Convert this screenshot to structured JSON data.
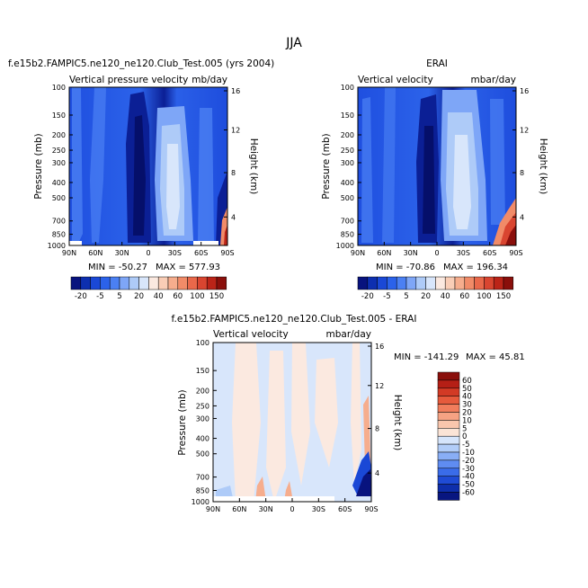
{
  "figure_title": "JJA",
  "chart_data": [
    {
      "type": "heatmap",
      "title": "f.e15b2.FAMPIC5.ne120_ne120.Club_Test.005 (yrs 2004)",
      "subtitle_left": "Vertical pressure velocity",
      "subtitle_right": "mb/day",
      "xlabel": "",
      "ylabel": "Pressure (mb)",
      "y2label": "Height (km)",
      "x_ticks": [
        "90N",
        "60N",
        "30N",
        "0",
        "30S",
        "60S",
        "90S"
      ],
      "y_ticks": [
        "100",
        "150",
        "200",
        "250",
        "300",
        "400",
        "500",
        "700",
        "850",
        "1000"
      ],
      "y2_ticks": [
        "16",
        "12",
        "8",
        "4"
      ],
      "min_text": "MIN = -50.27",
      "max_text": "MAX = 577.93",
      "colorbar_labels": [
        "-20",
        "-5",
        "5",
        "20",
        "40",
        "60",
        "100",
        "150"
      ]
    },
    {
      "type": "heatmap",
      "title": "ERAI",
      "subtitle_left": "Vertical velocity",
      "subtitle_right": "mbar/day",
      "xlabel": "",
      "ylabel": "Pressure (mb)",
      "y2label": "Height (km)",
      "x_ticks": [
        "90N",
        "60N",
        "30N",
        "0",
        "30S",
        "60S",
        "90S"
      ],
      "y_ticks": [
        "100",
        "150",
        "200",
        "250",
        "300",
        "400",
        "500",
        "700",
        "850",
        "1000"
      ],
      "y2_ticks": [
        "16",
        "12",
        "8",
        "4"
      ],
      "min_text": "MIN = -70.86",
      "max_text": "MAX = 196.34",
      "colorbar_labels": [
        "-20",
        "-5",
        "5",
        "20",
        "40",
        "60",
        "100",
        "150"
      ]
    },
    {
      "type": "heatmap",
      "title": "f.e15b2.FAMPIC5.ne120_ne120.Club_Test.005 - ERAI",
      "subtitle_left": "Vertical velocity",
      "subtitle_right": "mbar/day",
      "xlabel": "",
      "ylabel": "Pressure (mb)",
      "y2label": "Height (km)",
      "x_ticks": [
        "90N",
        "60N",
        "30N",
        "0",
        "30S",
        "60S",
        "90S"
      ],
      "y_ticks": [
        "100",
        "150",
        "200",
        "250",
        "300",
        "400",
        "500",
        "700",
        "850",
        "1000"
      ],
      "y2_ticks": [
        "16",
        "12",
        "8",
        "4"
      ],
      "min_text": "MIN = -141.29",
      "max_text": "MAX =  45.81",
      "colorbar_labels": [
        "60",
        "50",
        "40",
        "30",
        "20",
        "10",
        "5",
        "0",
        "-5",
        "-10",
        "-20",
        "-30",
        "-40",
        "-50",
        "-60"
      ]
    }
  ],
  "colors": {
    "abs_scale": [
      "#08137e",
      "#0d2fb0",
      "#1a48d6",
      "#2b62ea",
      "#4b80f3",
      "#7ea6f7",
      "#aecbf8",
      "#d8e6fb",
      "#fbe9e0",
      "#f9cdb6",
      "#f6ad8d",
      "#f18b68",
      "#e9684a",
      "#d94530",
      "#bb2418",
      "#8a0f0b"
    ],
    "diff_scale": [
      "#8a0f0b",
      "#b51f16",
      "#d23a25",
      "#e65a3c",
      "#f17d5c",
      "#f6a283",
      "#f9c6ad",
      "#fbe4d6",
      "#d6e5fb",
      "#b2cdf8",
      "#89aef6",
      "#5f8cf1",
      "#3a6ce9",
      "#1f4bd5",
      "#0e2eab",
      "#081680"
    ]
  }
}
